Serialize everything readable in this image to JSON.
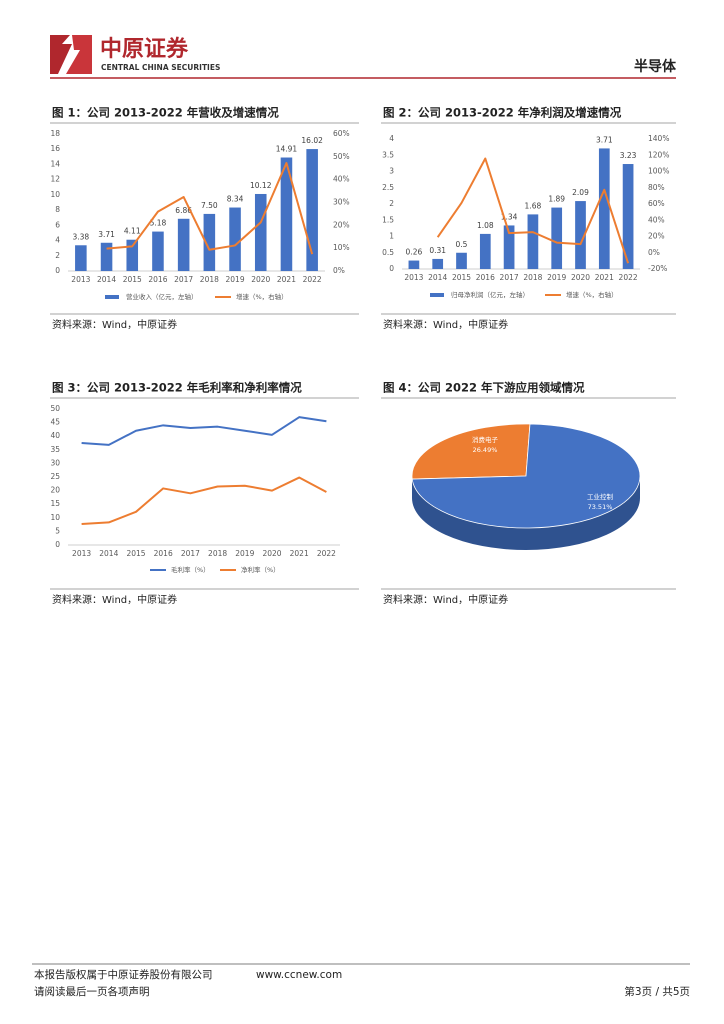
{
  "header": {
    "logo_cn": "中原证券",
    "logo_en": "CENTRAL CHINA SECURITIES",
    "sector": "半导体"
  },
  "figures": [
    {
      "title": "图 1：公司 2013-2022 年营收及增速情况",
      "source": "资料来源：Wind，中原证券"
    },
    {
      "title": "图 2：公司 2013-2022 年净利润及增速情况",
      "source": "资料来源：Wind，中原证券"
    },
    {
      "title": "图 3：公司 2013-2022 年毛利率和净利率情况",
      "source": "资料来源：Wind，中原证券"
    },
    {
      "title": "图 4：公司 2022 年下游应用领域情况",
      "source": "资料来源：Wind，中原证券"
    }
  ],
  "chart_data": [
    {
      "type": "bar",
      "categories": [
        "2013",
        "2014",
        "2015",
        "2016",
        "2017",
        "2018",
        "2019",
        "2020",
        "2021",
        "2022"
      ],
      "series": [
        {
          "name": "营业收入（亿元，左轴）",
          "type": "bar",
          "color": "#4472c4",
          "values": [
            3.38,
            3.71,
            4.11,
            5.18,
            6.86,
            7.5,
            8.34,
            10.12,
            14.91,
            16.02
          ],
          "value_labels": [
            "3.38",
            "3.71",
            "4.11",
            "5.18",
            "6.86",
            "7.50",
            "8.34",
            "10.12",
            "14.91",
            "16.02"
          ]
        },
        {
          "name": "增速（%，右轴）",
          "type": "line",
          "axis": "y2",
          "color": "#ed7d31",
          "values": [
            null,
            9.8,
            10.8,
            26.0,
            32.4,
            9.3,
            11.2,
            21.3,
            47.3,
            7.4
          ]
        }
      ],
      "ylim": [
        0,
        18
      ],
      "yticks": [
        0,
        2,
        4,
        6,
        8,
        10,
        12,
        14,
        16,
        18
      ],
      "y2lim": [
        0,
        60
      ],
      "y2ticks": [
        {
          "value": 0,
          "label": "0%"
        },
        {
          "value": 10,
          "label": "10%"
        },
        {
          "value": 20,
          "label": "20%"
        },
        {
          "value": 30,
          "label": "30%"
        },
        {
          "value": 40,
          "label": "40%"
        },
        {
          "value": 50,
          "label": "50%"
        },
        {
          "value": 60,
          "label": "60%"
        }
      ]
    },
    {
      "type": "bar",
      "categories": [
        "2013",
        "2014",
        "2015",
        "2016",
        "2017",
        "2018",
        "2019",
        "2020",
        "2021",
        "2022"
      ],
      "series": [
        {
          "name": "归母净利润（亿元，左轴）",
          "type": "bar",
          "color": "#4472c4",
          "values": [
            0.26,
            0.31,
            0.5,
            1.08,
            1.34,
            1.68,
            1.89,
            2.09,
            3.71,
            3.23
          ]
        },
        {
          "name": "增速（%，右轴）",
          "type": "line",
          "axis": "y2",
          "color": "#ed7d31",
          "values": [
            null,
            19.2,
            61.3,
            116,
            24.1,
            25.4,
            12.5,
            10.6,
            77.5,
            -12.9
          ]
        }
      ],
      "ylim": [
        0,
        4
      ],
      "yticks": [
        0,
        0.5,
        1,
        1.5,
        2,
        2.5,
        3,
        3.5,
        4
      ],
      "y2lim": [
        -20,
        140
      ],
      "y2ticks": [
        {
          "value": -20,
          "label": "-20%"
        },
        {
          "value": 0,
          "label": "0%"
        },
        {
          "value": 20,
          "label": "20%"
        },
        {
          "value": 40,
          "label": "40%"
        },
        {
          "value": 60,
          "label": "60%"
        },
        {
          "value": 80,
          "label": "80%"
        },
        {
          "value": 100,
          "label": "100%"
        },
        {
          "value": 120,
          "label": "120%"
        },
        {
          "value": 140,
          "label": "140%"
        }
      ]
    },
    {
      "type": "line",
      "categories": [
        "2013",
        "2014",
        "2015",
        "2016",
        "2017",
        "2018",
        "2019",
        "2020",
        "2021",
        "2022"
      ],
      "series": [
        {
          "name": "毛利率（%）",
          "color": "#4472c4",
          "values": [
            37.5,
            36.8,
            42.0,
            44.0,
            43.0,
            43.5,
            42.0,
            40.5,
            47.0,
            45.5
          ]
        },
        {
          "name": "净利率（%）",
          "color": "#ed7d31",
          "values": [
            7.7,
            8.3,
            12.2,
            20.8,
            19.0,
            21.5,
            21.8,
            20.0,
            24.8,
            19.5
          ]
        }
      ],
      "ylim": [
        0,
        50
      ],
      "yticks": [
        0,
        5,
        10,
        15,
        20,
        25,
        30,
        35,
        40,
        45,
        50
      ]
    },
    {
      "type": "pie",
      "categories": [
        "消费电子",
        "工业控制"
      ],
      "values": [
        26.49,
        73.51
      ],
      "value_labels": [
        "26.49%",
        "73.51%"
      ],
      "colors": [
        "#ed7d31",
        "#4472c4"
      ]
    }
  ],
  "footer": {
    "copyright": "本报告版权属于中原证券股份有限公司",
    "website": "www.ccnew.com",
    "notice": "请阅读最后一页各项声明",
    "page": "第3页 / 共5页"
  }
}
